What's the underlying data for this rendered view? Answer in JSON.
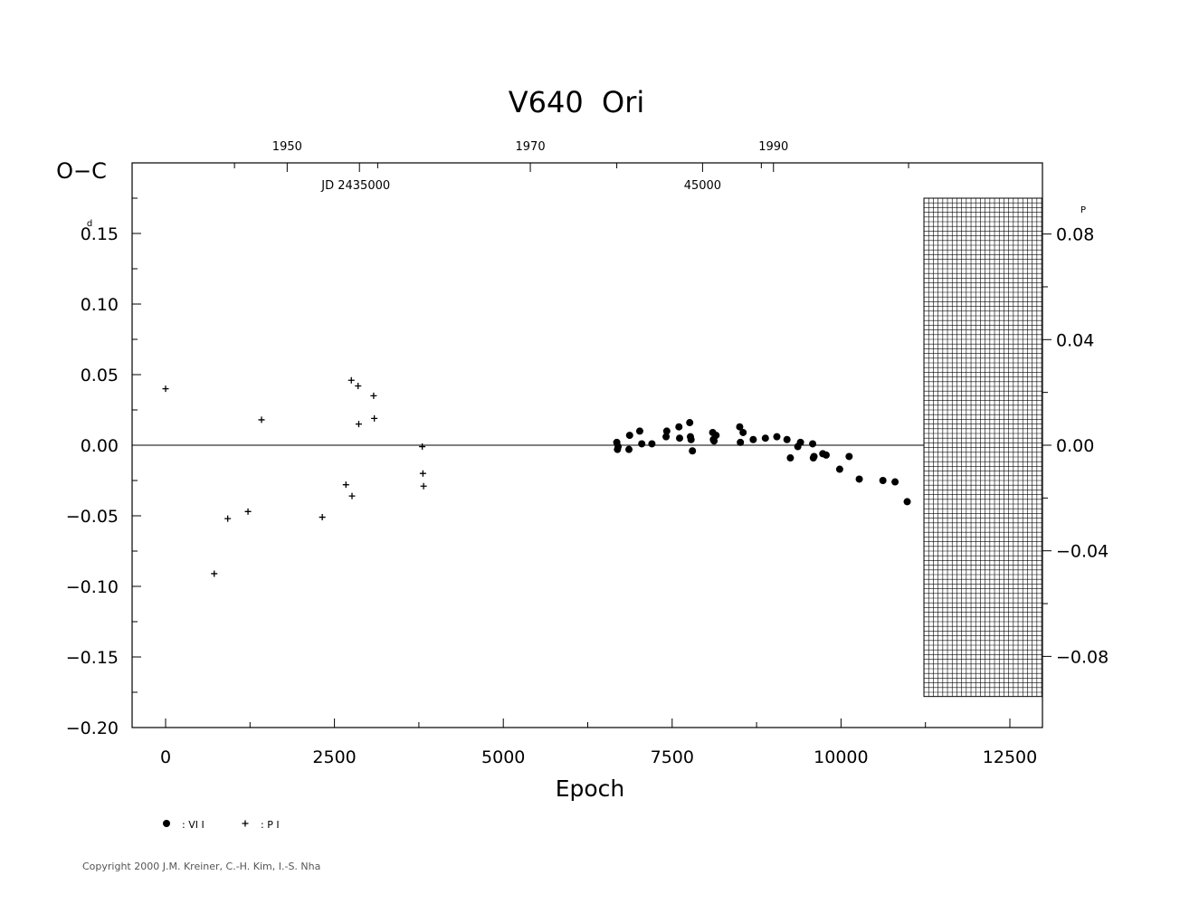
{
  "chart_data": {
    "type": "scatter",
    "title": "V640  Ori",
    "ylabel": "O−C",
    "ylabel_unit": "d",
    "xlabel": "Epoch",
    "right_axis_unit": "P",
    "xlim": [
      -1000,
      13000
    ],
    "ylim": [
      -0.2,
      0.2
    ],
    "x_ticks": [
      0,
      2500,
      5000,
      7500,
      10000,
      12500
    ],
    "x_tick_labels": [
      "0",
      "2500",
      "5000",
      "7500",
      "10000",
      "12500"
    ],
    "y_ticks": [
      -0.2,
      -0.15,
      -0.1,
      -0.05,
      0.0,
      0.05,
      0.1,
      0.15
    ],
    "y_tick_labels": [
      "−0.20",
      "−0.15",
      "−0.10",
      "−0.05",
      "0.00",
      "0.05",
      "0.10",
      "0.15"
    ],
    "right_ticks": [
      -0.08,
      -0.04,
      0.0,
      0.04,
      0.08
    ],
    "right_tick_labels": [
      "−0.08",
      "−0.04",
      "0.00",
      "0.04",
      "0.08"
    ],
    "right_period_scale": 1.87,
    "top_year_ticks": [
      {
        "epoch": 1800,
        "label": "1950"
      },
      {
        "epoch": 5400,
        "label": "1970"
      },
      {
        "epoch": 9000,
        "label": "1990"
      }
    ],
    "top_minor_epochs": [
      1020,
      3140,
      6680,
      8820,
      11000
    ],
    "jd_labels": [
      {
        "epoch": 2870,
        "label": "JD 2435000"
      },
      {
        "epoch": 7950,
        "label": "45000"
      }
    ],
    "grid": false,
    "shaded_region": {
      "x": [
        11000,
        13000
      ],
      "y": [
        -0.178,
        0.175
      ]
    },
    "series": [
      {
        "name": "VI",
        "marker": "dot",
        "points": [
          [
            6680,
            0.002
          ],
          [
            6690,
            -0.003
          ],
          [
            6700,
            -0.001
          ],
          [
            6860,
            -0.003
          ],
          [
            6870,
            0.007
          ],
          [
            7020,
            0.01
          ],
          [
            7050,
            0.001
          ],
          [
            7200,
            0.001
          ],
          [
            7410,
            0.006
          ],
          [
            7420,
            0.01
          ],
          [
            7600,
            0.013
          ],
          [
            7610,
            0.005
          ],
          [
            7760,
            0.016
          ],
          [
            7770,
            0.006
          ],
          [
            7780,
            0.004
          ],
          [
            7800,
            -0.004
          ],
          [
            8100,
            0.009
          ],
          [
            8110,
            0.004
          ],
          [
            8120,
            0.003
          ],
          [
            8150,
            0.007
          ],
          [
            8500,
            0.013
          ],
          [
            8510,
            0.002
          ],
          [
            8550,
            0.009
          ],
          [
            8700,
            0.004
          ],
          [
            8880,
            0.005
          ],
          [
            9050,
            0.006
          ],
          [
            9200,
            0.004
          ],
          [
            9250,
            -0.009
          ],
          [
            9360,
            -0.001
          ],
          [
            9400,
            0.002
          ],
          [
            9580,
            0.001
          ],
          [
            9590,
            -0.009
          ],
          [
            9600,
            -0.008
          ],
          [
            9730,
            -0.006
          ],
          [
            9780,
            -0.007
          ],
          [
            9980,
            -0.017
          ],
          [
            10120,
            -0.008
          ],
          [
            10270,
            -0.024
          ],
          [
            10620,
            -0.025
          ],
          [
            10800,
            -0.026
          ],
          [
            10980,
            -0.04
          ]
        ]
      },
      {
        "name": "PI",
        "marker": "plus",
        "points": [
          [
            0,
            0.04
          ],
          [
            720,
            -0.091
          ],
          [
            920,
            -0.052
          ],
          [
            1220,
            -0.047
          ],
          [
            1420,
            0.018
          ],
          [
            2320,
            -0.051
          ],
          [
            2670,
            -0.028
          ],
          [
            2750,
            0.046
          ],
          [
            2760,
            -0.036
          ],
          [
            2850,
            0.042
          ],
          [
            2860,
            0.015
          ],
          [
            3080,
            0.035
          ],
          [
            3090,
            0.019
          ],
          [
            3800,
            -0.001
          ],
          [
            3810,
            -0.02
          ],
          [
            3820,
            -0.029
          ]
        ]
      }
    ],
    "legend": [
      {
        "marker": "dot",
        "label": ": VI I"
      },
      {
        "marker": "plus",
        "label": ": P I"
      }
    ],
    "legend_position": "bottom-left"
  },
  "footer": {
    "copyright": "Copyright 2000 J.M. Kreiner, C.-H. Kim, I.-S. Nha"
  }
}
